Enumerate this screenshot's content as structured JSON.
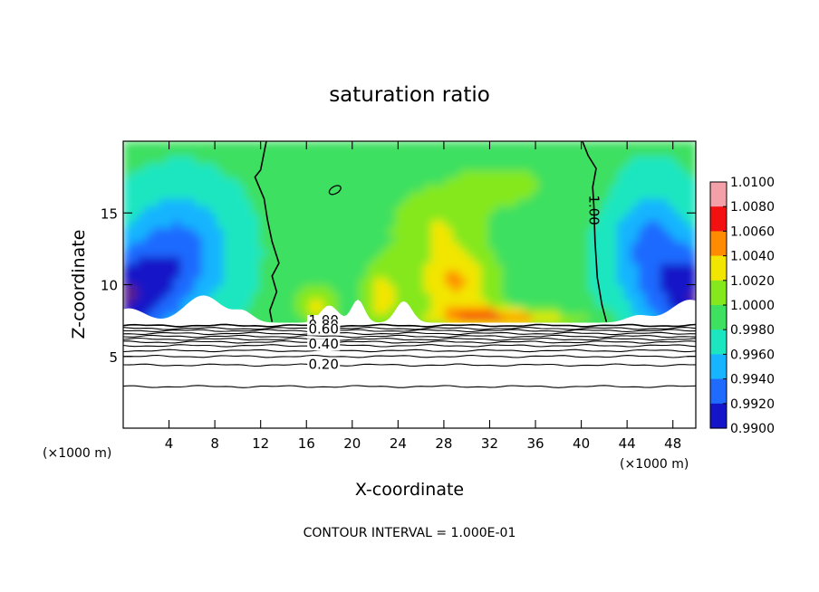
{
  "chart_data": {
    "type": "heatmap",
    "title": "saturation ratio",
    "xlabel": "X-coordinate",
    "ylabel": "Z-coordinate",
    "x_unit_label": "(×1000 m)",
    "x_unit_label_right": "(×1000 m)",
    "xlim": [
      0,
      50
    ],
    "ylim": [
      0,
      20
    ],
    "x_ticks": [
      4,
      8,
      12,
      16,
      20,
      24,
      28,
      32,
      36,
      40,
      44,
      48
    ],
    "y_ticks": [
      5,
      10,
      15
    ],
    "footer": "CONTOUR INTERVAL = 1.000E-01",
    "colorbar": {
      "min": 0.99,
      "max": 1.01,
      "labels": [
        "1.0100",
        "1.0080",
        "1.0060",
        "1.0040",
        "1.0020",
        "1.0000",
        "0.9980",
        "0.9960",
        "0.9940",
        "0.9920",
        "0.9900"
      ]
    },
    "contours": [
      {
        "level": 1.0,
        "label": "1.00"
      },
      {
        "level": 0.8,
        "label": "0.80"
      },
      {
        "level": 0.6,
        "label": "0.60"
      },
      {
        "level": 0.4,
        "label": "0.40"
      },
      {
        "level": 0.2,
        "label": "0.20"
      }
    ],
    "saturation_contour_label": "1.00"
  }
}
